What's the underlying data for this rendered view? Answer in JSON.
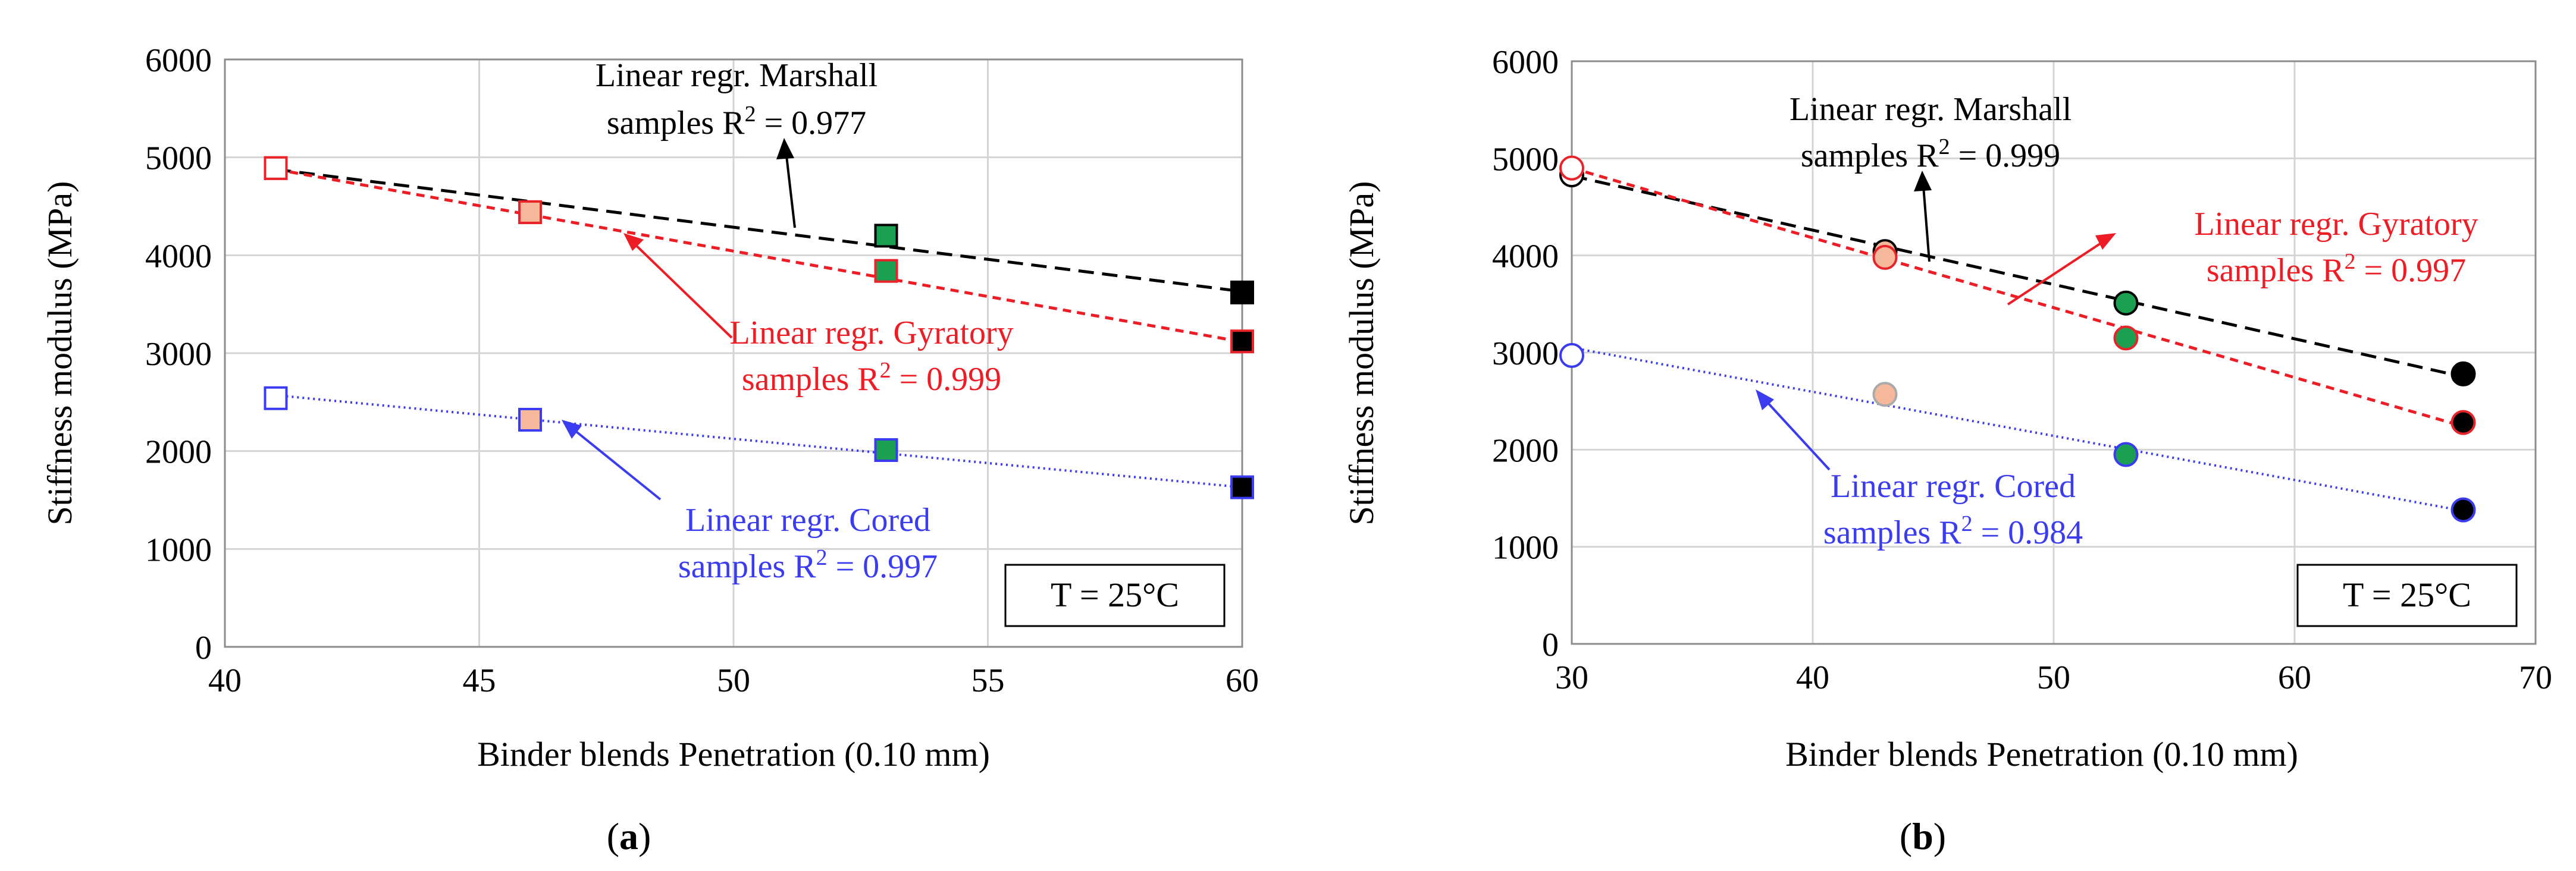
{
  "panels": [
    {
      "label_prefix": "(",
      "label_letter": "a",
      "label_suffix": ")",
      "legend_box_text": "T = 25°C",
      "chart_data": {
        "type": "scatter",
        "xlabel": "Binder blends Penetration (0.10 mm)",
        "ylabel": "Stiffness modulus (MPa)",
        "xlim": [
          40,
          60
        ],
        "ylim": [
          0,
          6000
        ],
        "xticks": [
          40,
          45,
          50,
          55,
          60
        ],
        "yticks": [
          0,
          1000,
          2000,
          3000,
          4000,
          5000,
          6000
        ],
        "grid": true,
        "marker": "square",
        "series": [
          {
            "name": "Marshall",
            "color": "#000000",
            "dash": "26,14",
            "points": [
              {
                "x": 41,
                "y": 4890,
                "fill": "#ffffff",
                "edge": "#e8232a"
              },
              {
                "x": 46,
                "y": 4440,
                "fill": "#f6b89a",
                "edge": "#e8232a"
              },
              {
                "x": 53,
                "y": 4200,
                "fill": "#1aa050",
                "edge": "#000000"
              },
              {
                "x": 60,
                "y": 3620,
                "fill": "#000000",
                "edge": "#000000"
              }
            ],
            "fit": [
              4877,
              3630
            ]
          },
          {
            "name": "Gyratory",
            "color": "#ee1c25",
            "dash": "14,10",
            "points": [
              {
                "x": 41,
                "y": 4890,
                "fill": "#ffffff",
                "edge": "#e8232a"
              },
              {
                "x": 46,
                "y": 4440,
                "fill": "#f6b89a",
                "edge": "#e8232a"
              },
              {
                "x": 53,
                "y": 3840,
                "fill": "#1aa050",
                "edge": "#e8232a"
              },
              {
                "x": 60,
                "y": 3120,
                "fill": "#000000",
                "edge": "#e8232a"
              }
            ],
            "fit": [
              4877,
              3115
            ]
          },
          {
            "name": "Cored",
            "color": "#3b3bf0",
            "dash": "3,6",
            "points": [
              {
                "x": 41,
                "y": 2540,
                "fill": "#ffffff",
                "edge": "#3b3bf0"
              },
              {
                "x": 46,
                "y": 2320,
                "fill": "#f6b89a",
                "edge": "#3b3bf0"
              },
              {
                "x": 53,
                "y": 2010,
                "fill": "#1aa050",
                "edge": "#3b3bf0"
              },
              {
                "x": 60,
                "y": 1630,
                "fill": "#000000",
                "edge": "#3b3bf0"
              }
            ],
            "fit": [
              2570,
              1630
            ]
          }
        ],
        "annotations": [
          {
            "series": "Marshall",
            "color": "#000000",
            "line1": "Linear regr. Marshall",
            "line2_prefix": "samples R",
            "sup": "2",
            "line2_suffix": " = 0.977"
          },
          {
            "series": "Gyratory",
            "color": "#ee1c25",
            "line1": "Linear regr. Gyratory",
            "line2_prefix": "samples R",
            "sup": "2",
            "line2_suffix": " = 0.999"
          },
          {
            "series": "Cored",
            "color": "#3b3bf0",
            "line1": "Linear regr. Cored",
            "line2_prefix": "samples R",
            "sup": "2",
            "line2_suffix": " = 0.997"
          }
        ]
      }
    },
    {
      "label_prefix": "(",
      "label_letter": "b",
      "label_suffix": ")",
      "legend_box_text": "T = 25°C",
      "chart_data": {
        "type": "scatter",
        "xlabel": "Binder blends Penetration (0.10 mm)",
        "ylabel": "Stiffness modulus (MPa)",
        "xlim": [
          30,
          70
        ],
        "ylim": [
          0,
          6000
        ],
        "xticks": [
          30,
          40,
          50,
          60,
          70
        ],
        "yticks": [
          0,
          1000,
          2000,
          3000,
          4000,
          5000,
          6000
        ],
        "grid": true,
        "marker": "circle",
        "series": [
          {
            "name": "Marshall",
            "color": "#000000",
            "dash": "26,14",
            "points": [
              {
                "x": 30,
                "y": 4830,
                "fill": "#ffffff",
                "edge": "#000000"
              },
              {
                "x": 43,
                "y": 4040,
                "fill": "#f6b89a",
                "edge": "#000000"
              },
              {
                "x": 53,
                "y": 3510,
                "fill": "#1aa050",
                "edge": "#000000"
              },
              {
                "x": 67,
                "y": 2780,
                "fill": "#000000",
                "edge": "#000000"
              }
            ],
            "fit": [
              4820,
              2750
            ]
          },
          {
            "name": "Gyratory",
            "color": "#ee1c25",
            "dash": "14,10",
            "points": [
              {
                "x": 30,
                "y": 4900,
                "fill": "#ffffff",
                "edge": "#e8232a"
              },
              {
                "x": 43,
                "y": 3980,
                "fill": "#f6b89a",
                "edge": "#e8232a"
              },
              {
                "x": 53,
                "y": 3150,
                "fill": "#1aa050",
                "edge": "#e8232a"
              },
              {
                "x": 67,
                "y": 2280,
                "fill": "#000000",
                "edge": "#e8232a"
              }
            ],
            "fit": [
              4900,
              2240
            ]
          },
          {
            "name": "Cored",
            "color": "#3b3bf0",
            "dash": "3,6",
            "points": [
              {
                "x": 30,
                "y": 2970,
                "fill": "#ffffff",
                "edge": "#3b3bf0"
              },
              {
                "x": 43,
                "y": 2570,
                "fill": "#f6b89a",
                "edge": "#aaaaaa"
              },
              {
                "x": 53,
                "y": 1950,
                "fill": "#1aa050",
                "edge": "#3b3bf0"
              },
              {
                "x": 67,
                "y": 1380,
                "fill": "#000000",
                "edge": "#3b3bf0"
              }
            ],
            "fit": [
              3050,
              1370
            ]
          }
        ],
        "annotations": [
          {
            "series": "Marshall",
            "color": "#000000",
            "line1": "Linear regr. Marshall",
            "line2_prefix": "samples R",
            "sup": "2",
            "line2_suffix": " = 0.999"
          },
          {
            "series": "Gyratory",
            "color": "#ee1c25",
            "line1": "Linear regr. Gyratory",
            "line2_prefix": "samples R",
            "sup": "2",
            "line2_suffix": " = 0.997"
          },
          {
            "series": "Cored",
            "color": "#3b3bf0",
            "line1": "Linear regr. Cored",
            "line2_prefix": "samples R",
            "sup": "2",
            "line2_suffix": " = 0.984"
          }
        ]
      }
    }
  ]
}
